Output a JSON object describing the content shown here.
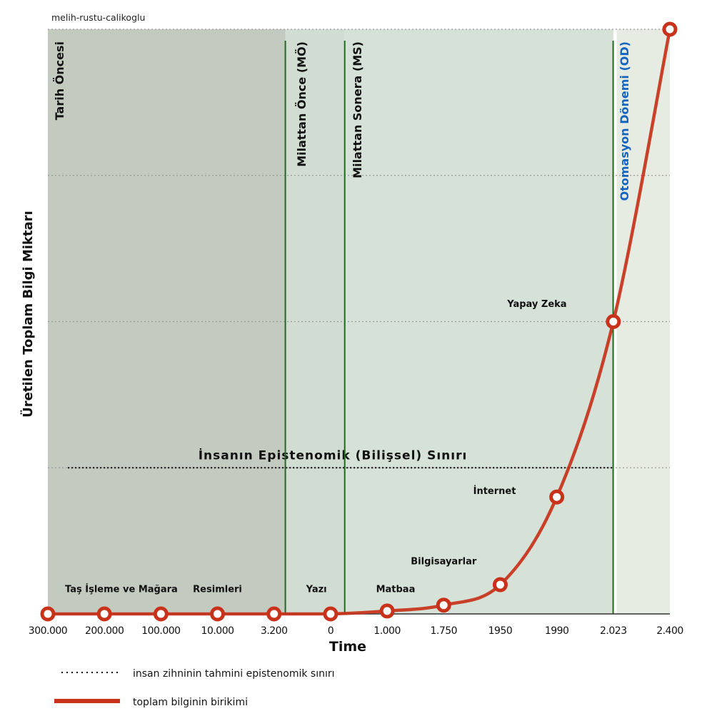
{
  "watermark": "melih-rustu-calikoglu",
  "chart_data": {
    "type": "line",
    "xlabel": "Time",
    "ylabel": "Üretilen Toplam Bilgi Miktarı",
    "x_ticks": [
      "300.000",
      "200.000",
      "100.000",
      "10.000",
      "3.200",
      "0",
      "1.000",
      "1.750",
      "1950",
      "1990",
      "2.023",
      "2.400"
    ],
    "ylim": [
      0,
      4
    ],
    "y_grid": [
      1,
      2,
      3,
      4
    ],
    "grid": true,
    "series": [
      {
        "name": "toplam bilginin birikimi",
        "color": "#c8321a",
        "values": [
          0,
          0,
          0,
          0,
          0,
          0,
          0.02,
          0.06,
          0.2,
          0.8,
          2,
          4
        ]
      }
    ],
    "epistemic_limit": {
      "value": 1,
      "label": "İnsanın Epistenomik (Bilişsel) Sınırı"
    },
    "eras": [
      {
        "label": "Tarih Öncesi",
        "from": 0,
        "to": 4.2,
        "color": "#c3cbc1",
        "label_color": "#111111"
      },
      {
        "label": "Milattan Önce (MÖ)",
        "from": 4.2,
        "to": 5.25,
        "color": "#d1dcd2",
        "label_color": "#111111"
      },
      {
        "label": "Milattan Sonera (MS)",
        "from": 5.25,
        "to": 10,
        "color": "#d6e1d8",
        "label_color": "#111111"
      },
      {
        "label": "Otomasyon Dönemi (OD)",
        "from": 10.06,
        "to": 11,
        "color": "#e6ece2",
        "label_color": "#1565c0"
      }
    ],
    "annotations": [
      {
        "text": "Taş İşleme ve Mağara",
        "x": 1.3,
        "y": 0.15
      },
      {
        "text": "Resimleri",
        "x": 3.0,
        "y": 0.15
      },
      {
        "text": "Yazı",
        "x": 4.75,
        "y": 0.15
      },
      {
        "text": "Matbaa",
        "x": 6.15,
        "y": 0.15
      },
      {
        "text": "Bilgisayarlar",
        "x": 7.0,
        "y": 0.34
      },
      {
        "text": "İnternet",
        "x": 7.9,
        "y": 0.82
      },
      {
        "text": "Yapay Zeka",
        "x": 8.65,
        "y": 2.1
      }
    ],
    "legend": [
      {
        "label": "insan zihninin tahmini epistenomik sınırı",
        "style": "dotted",
        "color": "#000000"
      },
      {
        "label": "toplam bilginin birikimi",
        "style": "solid",
        "color": "#c8321a"
      }
    ],
    "legend_placement": "bottom-left"
  }
}
